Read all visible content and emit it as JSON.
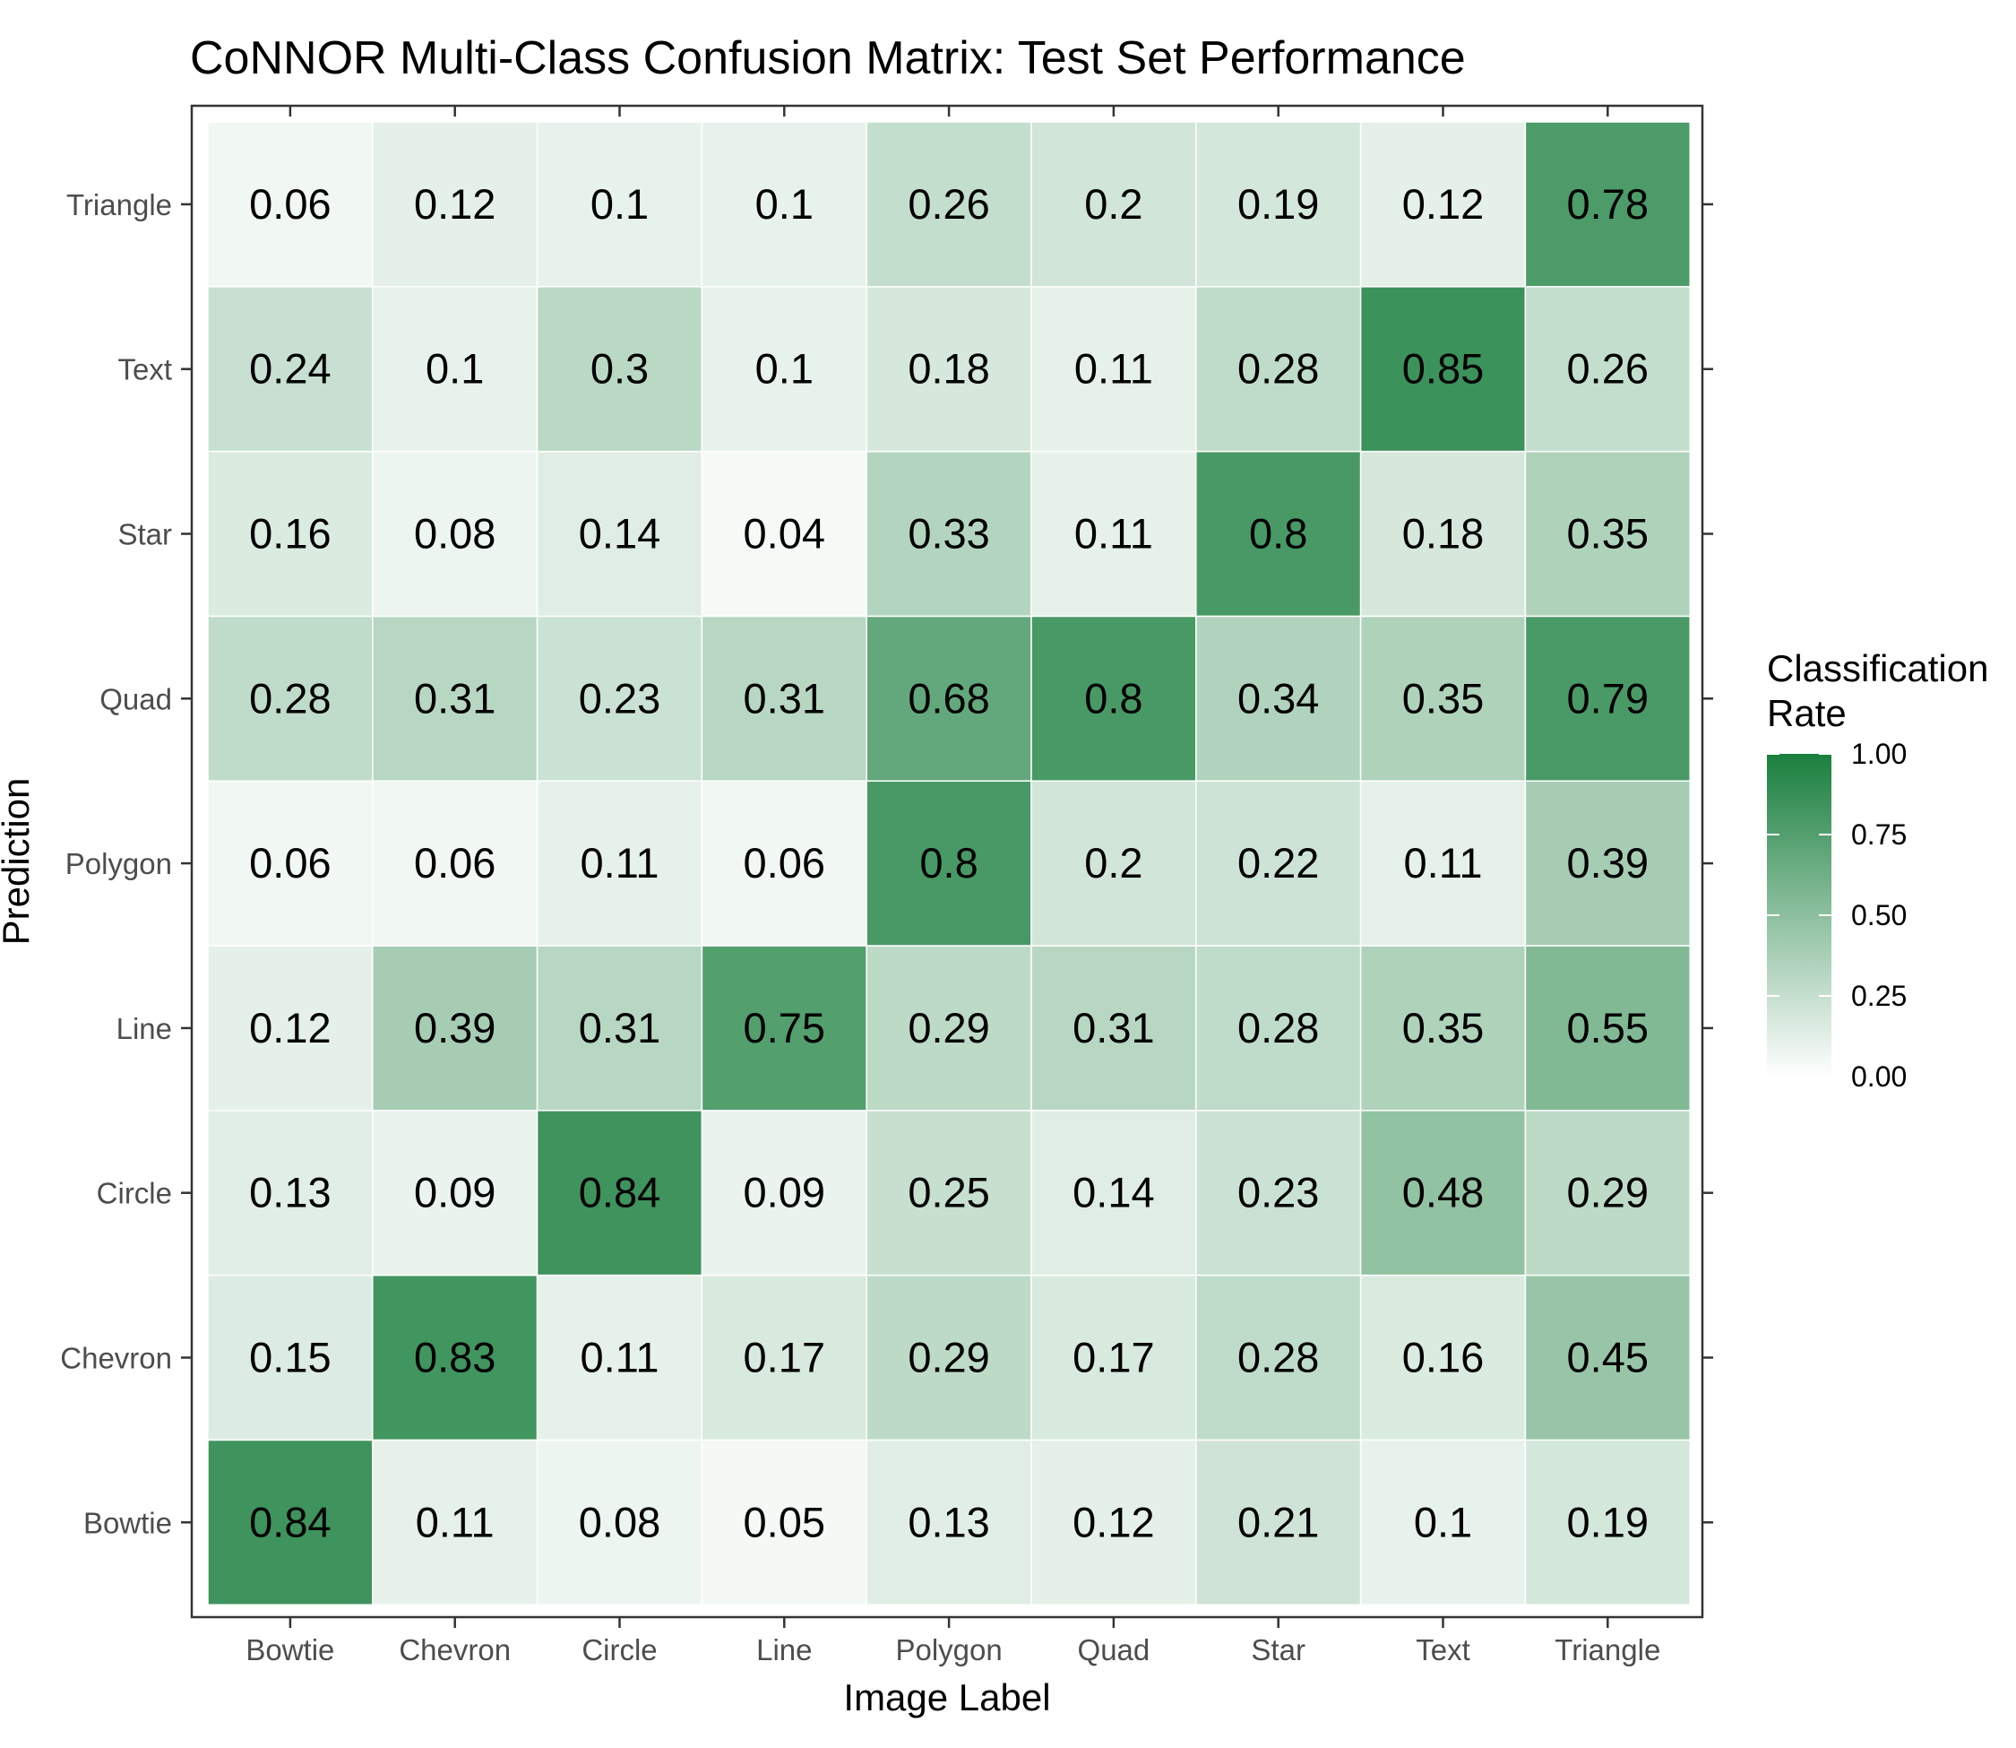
{
  "chart_data": {
    "type": "heatmap",
    "title": "CoNNOR Multi-Class Confusion Matrix: Test Set Performance",
    "xlabel": "Image Label",
    "ylabel": "Prediction",
    "x_categories": [
      "Bowtie",
      "Chevron",
      "Circle",
      "Line",
      "Polygon",
      "Quad",
      "Star",
      "Text",
      "Triangle"
    ],
    "y_categories": [
      "Bowtie",
      "Chevron",
      "Circle",
      "Line",
      "Polygon",
      "Quad",
      "Star",
      "Text",
      "Triangle"
    ],
    "values": [
      [
        0.84,
        0.11,
        0.08,
        0.05,
        0.13,
        0.12,
        0.21,
        0.1,
        0.19
      ],
      [
        0.15,
        0.83,
        0.11,
        0.17,
        0.29,
        0.17,
        0.28,
        0.16,
        0.45
      ],
      [
        0.13,
        0.09,
        0.84,
        0.09,
        0.25,
        0.14,
        0.23,
        0.48,
        0.29
      ],
      [
        0.12,
        0.39,
        0.31,
        0.75,
        0.29,
        0.31,
        0.28,
        0.35,
        0.55
      ],
      [
        0.06,
        0.06,
        0.11,
        0.06,
        0.8,
        0.2,
        0.22,
        0.11,
        0.39
      ],
      [
        0.28,
        0.31,
        0.23,
        0.31,
        0.68,
        0.8,
        0.34,
        0.35,
        0.79
      ],
      [
        0.16,
        0.08,
        0.14,
        0.04,
        0.33,
        0.11,
        0.8,
        0.18,
        0.35
      ],
      [
        0.24,
        0.1,
        0.3,
        0.1,
        0.18,
        0.11,
        0.28,
        0.85,
        0.26
      ],
      [
        0.06,
        0.12,
        0.1,
        0.1,
        0.26,
        0.2,
        0.19,
        0.12,
        0.78
      ]
    ],
    "legend": {
      "title_lines": [
        "Classification",
        "Rate"
      ],
      "ticks": [
        "0.00",
        "0.25",
        "0.50",
        "0.75",
        "1.00"
      ],
      "range": [
        0,
        1
      ],
      "low_color": "#ffffff",
      "high_color": "#1a7f3e",
      "placement": "right"
    }
  }
}
